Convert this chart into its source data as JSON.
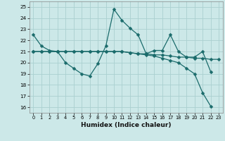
{
  "xlabel": "Humidex (Indice chaleur)",
  "xlim": [
    -0.5,
    23.5
  ],
  "ylim": [
    15.5,
    25.5
  ],
  "yticks": [
    16,
    17,
    18,
    19,
    20,
    21,
    22,
    23,
    24,
    25
  ],
  "xticks": [
    0,
    1,
    2,
    3,
    4,
    5,
    6,
    7,
    8,
    9,
    10,
    11,
    12,
    13,
    14,
    15,
    16,
    17,
    18,
    19,
    20,
    21,
    22,
    23
  ],
  "background_color": "#cce8e8",
  "grid_color": "#aad0d0",
  "line_color": "#1a6b6b",
  "line1_y": [
    22.5,
    21.5,
    21.1,
    21.0,
    20.0,
    19.5,
    19.0,
    18.8,
    19.9,
    21.5,
    24.8,
    23.8,
    23.1,
    22.5,
    20.8,
    21.1,
    21.1,
    22.5,
    21.0,
    20.5,
    20.5,
    21.0,
    19.2,
    null
  ],
  "line2_y": [
    21.0,
    21.0,
    21.0,
    21.0,
    21.0,
    21.0,
    21.0,
    21.0,
    21.0,
    21.0,
    21.0,
    21.0,
    20.9,
    20.8,
    20.8,
    20.7,
    20.7,
    20.6,
    20.5,
    20.5,
    20.4,
    20.4,
    20.3,
    20.3
  ],
  "line3_y": [
    21.0,
    21.0,
    21.0,
    21.0,
    21.0,
    21.0,
    21.0,
    21.0,
    21.0,
    21.0,
    21.0,
    21.0,
    20.9,
    20.8,
    20.7,
    20.6,
    20.4,
    20.2,
    20.0,
    19.5,
    19.0,
    17.3,
    16.1,
    null
  ],
  "markersize": 2.5
}
